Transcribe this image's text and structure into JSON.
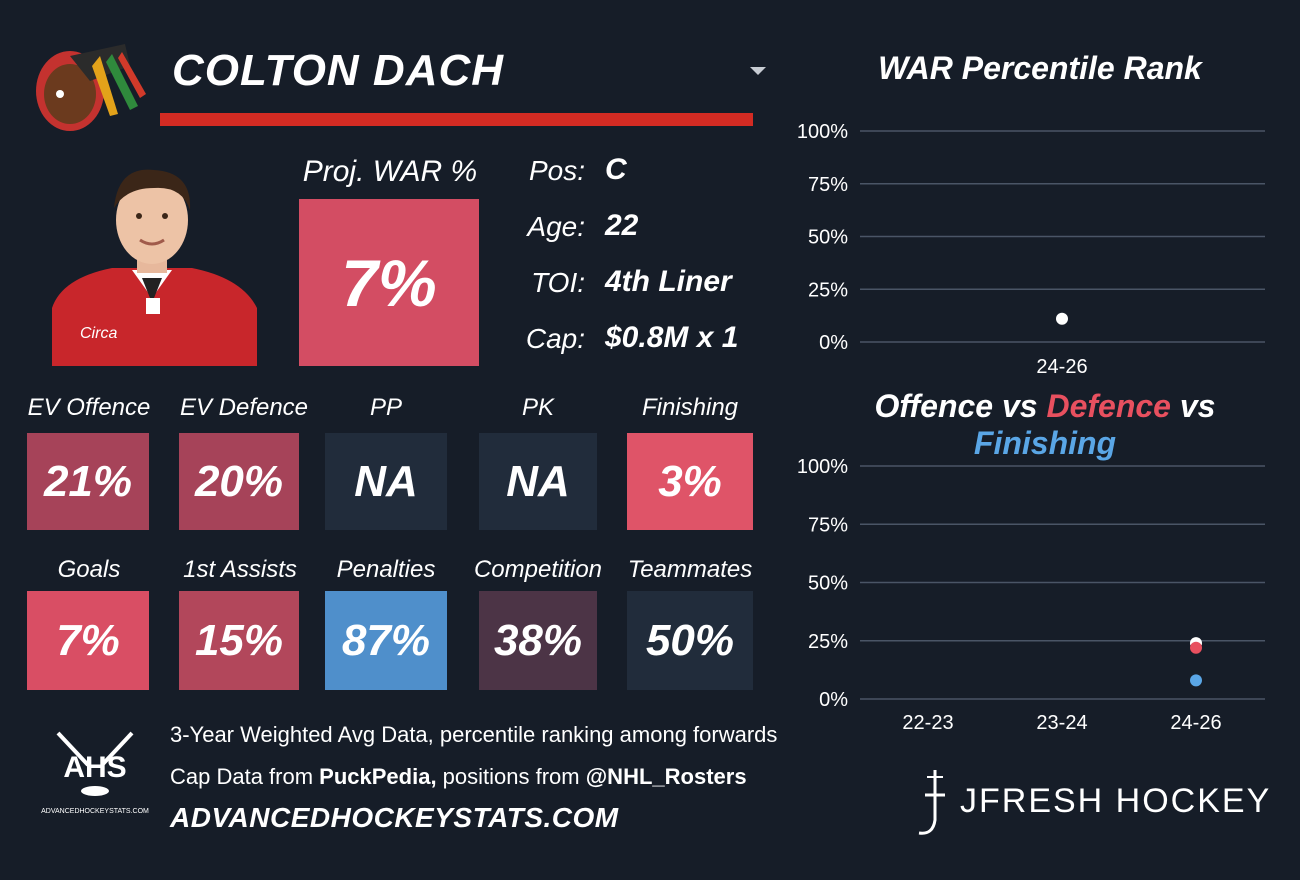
{
  "player": {
    "name": "COLTON DACH",
    "proj_war_label": "Proj. WAR %",
    "proj_war_value": "7%",
    "proj_war_color": "#d34d63"
  },
  "info": [
    {
      "label": "Pos:",
      "value": "C"
    },
    {
      "label": "Age:",
      "value": "22"
    },
    {
      "label": "TOI:",
      "value": "4th Liner"
    },
    {
      "label": "Cap:",
      "value": "$0.8M x 1"
    }
  ],
  "stats_row1": [
    {
      "label": "EV Offence",
      "value": "21%",
      "color": "#a64359"
    },
    {
      "label": "EV Defence",
      "value": "20%",
      "color": "#a64359"
    },
    {
      "label": "PP",
      "value": "NA",
      "color": "#212c3b"
    },
    {
      "label": "PK",
      "value": "NA",
      "color": "#212c3b"
    },
    {
      "label": "Finishing",
      "value": "3%",
      "color": "#df5468"
    }
  ],
  "stats_row2": [
    {
      "label": "Goals",
      "value": "7%",
      "color": "#d94e64"
    },
    {
      "label": "1st Assists",
      "value": "15%",
      "color": "#b2475b"
    },
    {
      "label": "Penalties",
      "value": "87%",
      "color": "#4f8fcb"
    },
    {
      "label": "Competition",
      "value": "38%",
      "color": "#4c3446"
    },
    {
      "label": "Teammates",
      "value": "50%",
      "color": "#212c3b"
    }
  ],
  "footer": {
    "line1": "3-Year Weighted Avg Data, percentile ranking among forwards",
    "line2_prefix": "Cap Data from ",
    "line2_src1": "PuckPedia,",
    "line2_mid": " positions from ",
    "line2_src2": "@NHL_Rosters",
    "site": "ADVANCEDHOCKEYSTATS.COM",
    "ahs_logo_text": "AHS",
    "ahs_logo_sub": "ADVANCEDHOCKEYSTATS.COM",
    "brand": "JFRESH HOCKEY"
  },
  "chart_data": [
    {
      "type": "scatter",
      "title": "WAR Percentile Rank",
      "categories": [
        "24-26"
      ],
      "yticks": [
        "0%",
        "25%",
        "50%",
        "75%",
        "100%"
      ],
      "ylim": [
        0,
        100
      ],
      "series": [
        {
          "values": [
            11
          ],
          "color": "#ffffff"
        }
      ]
    },
    {
      "type": "scatter",
      "title_parts": [
        {
          "text": "Offence",
          "color": "#ffffff"
        },
        {
          "text": " vs ",
          "color": "#ffffff"
        },
        {
          "text": "Defence",
          "color": "#e8505f"
        },
        {
          "text": " vs ",
          "color": "#ffffff"
        },
        {
          "text": "Finishing",
          "color": "#5aa6e6"
        }
      ],
      "categories": [
        "22-23",
        "23-24",
        "24-26"
      ],
      "yticks": [
        "0%",
        "25%",
        "50%",
        "75%",
        "100%"
      ],
      "ylim": [
        0,
        100
      ],
      "series": [
        {
          "name": "Offence",
          "values": [
            null,
            null,
            24
          ],
          "color": "#ffffff"
        },
        {
          "name": "Defence",
          "values": [
            null,
            null,
            22
          ],
          "color": "#e8505f"
        },
        {
          "name": "Finishing",
          "values": [
            null,
            null,
            8
          ],
          "color": "#5aa6e6"
        }
      ]
    }
  ]
}
